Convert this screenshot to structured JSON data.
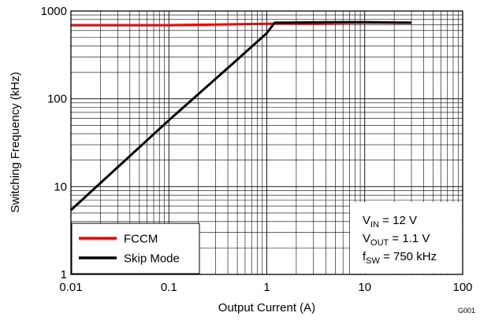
{
  "chart_data": {
    "type": "line",
    "xlabel": "Output Current (A)",
    "ylabel": "Switching Frequency (kHz)",
    "x_scale": "log",
    "y_scale": "log",
    "xlim": [
      0.01,
      100
    ],
    "ylim": [
      1,
      1000
    ],
    "x_ticks": [
      {
        "value": 0.01,
        "label": "0.01"
      },
      {
        "value": 0.1,
        "label": "0.1"
      },
      {
        "value": 1,
        "label": "1"
      },
      {
        "value": 10,
        "label": "10"
      },
      {
        "value": 100,
        "label": "100"
      }
    ],
    "y_ticks": [
      {
        "value": 1,
        "label": "1"
      },
      {
        "value": 10,
        "label": "10"
      },
      {
        "value": 100,
        "label": "100"
      },
      {
        "value": 1000,
        "label": "1000"
      }
    ],
    "grid": true,
    "legend_position": "bottom-left",
    "series": [
      {
        "name": "FCCM",
        "color": "#ff0000",
        "points": [
          [
            0.01,
            690
          ],
          [
            0.1,
            690
          ],
          [
            1,
            715
          ],
          [
            10,
            740
          ],
          [
            30,
            735
          ]
        ]
      },
      {
        "name": "Skip Mode",
        "color": "#000000",
        "points": [
          [
            0.01,
            5.4
          ],
          [
            0.1,
            57
          ],
          [
            0.5,
            280
          ],
          [
            1,
            560
          ],
          [
            1.2,
            735
          ],
          [
            5,
            745
          ],
          [
            10,
            745
          ],
          [
            30,
            735
          ]
        ]
      }
    ],
    "annotations": [
      {
        "main": "V",
        "sub": "IN",
        "rest": " = 12 V"
      },
      {
        "main": "V",
        "sub": "OUT",
        "rest": " = 1.1 V"
      },
      {
        "main": "f",
        "sub": "SW",
        "rest": " = 750 kHz"
      }
    ],
    "figure_id": "G001"
  }
}
